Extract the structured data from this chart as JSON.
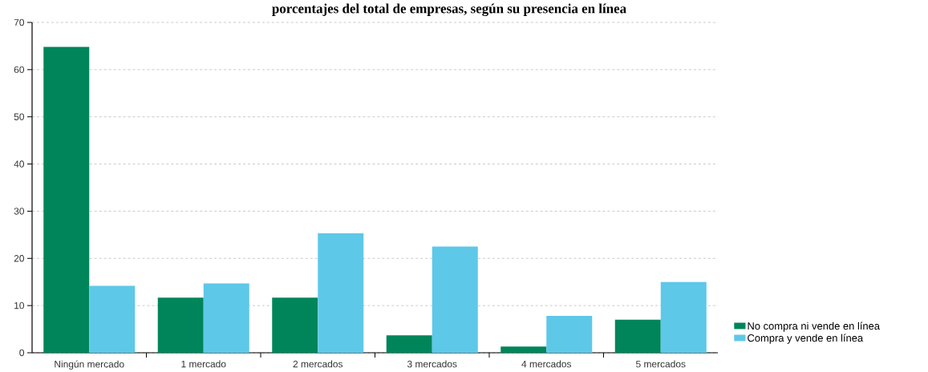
{
  "chart_data": {
    "type": "bar",
    "title": "porcentajes del total de empresas, según su presencia en línea",
    "categories": [
      "Ningún mercado",
      "1 mercado",
      "2 mercados",
      "3 mercados",
      "4 mercados",
      "5 mercados"
    ],
    "series": [
      {
        "name": "No compra ni vende en línea",
        "color": "#00855a",
        "values": [
          64.8,
          11.7,
          11.7,
          3.7,
          1.3,
          7.0
        ]
      },
      {
        "name": "Compra y vende en línea",
        "color": "#5ec8e8",
        "values": [
          14.2,
          14.7,
          25.3,
          22.5,
          7.8,
          15.0
        ]
      }
    ],
    "ylim": [
      0,
      70
    ],
    "yticks": [
      0,
      10,
      20,
      30,
      40,
      50,
      60,
      70
    ],
    "grid": "y",
    "legend": "bottom right"
  }
}
